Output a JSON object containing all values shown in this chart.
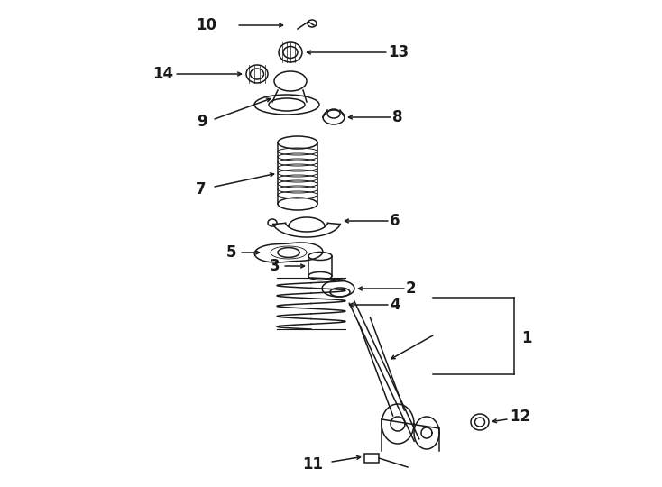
{
  "bg_color": "#ffffff",
  "lc": "#1a1a1a",
  "lw": 1.1,
  "fig_w": 7.34,
  "fig_h": 5.4,
  "dpi": 100,
  "label_fs": 12
}
